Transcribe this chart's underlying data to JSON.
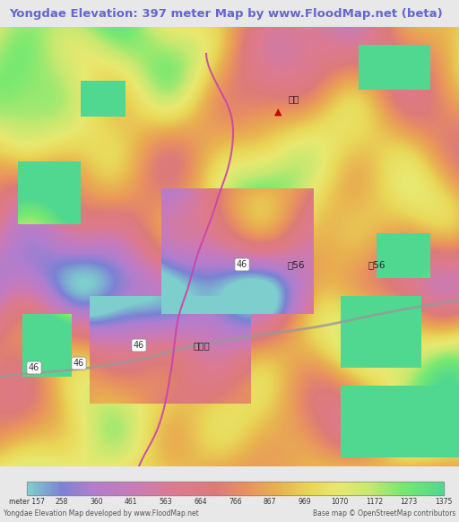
{
  "title": "Yongdae Elevation: 397 meter Map by www.FloodMap.net (beta)",
  "title_color": "#6666cc",
  "title_bg": "#e8e8e8",
  "colorbar_labels": [
    "meter 157",
    "258",
    "360",
    "461",
    "563",
    "664",
    "766",
    "867",
    "969",
    "1070",
    "1172",
    "1273",
    "1375"
  ],
  "colorbar_colors": [
    "#7ecece",
    "#7b82d4",
    "#b07ecf",
    "#d47bc5",
    "#e87aaa",
    "#e87a7a",
    "#e8a07a",
    "#e8c87a",
    "#e8e87a",
    "#b8e87a",
    "#78e87a",
    "#78e8a8",
    "#78d4e8"
  ],
  "footer_left": "Yongdae Elevation Map developed by www.FloodMap.net",
  "footer_right": "Base map © OpenStreetMap contributors",
  "map_bg": "#c8a0dc",
  "fig_width": 5.12,
  "fig_height": 5.82,
  "road_labels": [
    "46",
    "46",
    "46",
    "46",
    "용대리",
    "지56",
    "지56",
    "플리"
  ],
  "point_label": "▲"
}
